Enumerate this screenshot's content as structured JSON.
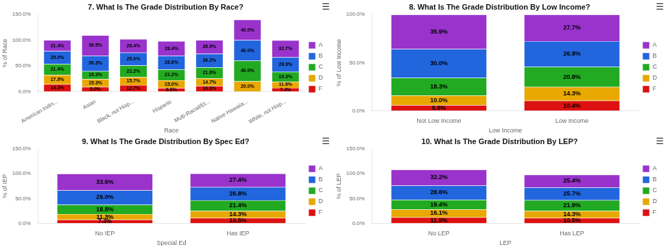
{
  "chart_data": [
    {
      "type": "bar",
      "stacked": true,
      "title": "7. What Is The Grade Distribution By Race?",
      "xlabel": "Race",
      "ylabel": "% of Race",
      "categories": [
        "American Indin...",
        "Asian",
        "Black, not Hisp...",
        "Hispanic",
        "Multi-Racial/Et...",
        "Native Hawaiia...",
        "White, not Hisp..."
      ],
      "series": [
        {
          "name": "F",
          "color": "#dd1111",
          "values": [
            14.3,
            9.0,
            12.7,
            6.8,
            10.8,
            0.0,
            7.4
          ],
          "value_labels": [
            "14.3%",
            "9.0%",
            "12.7%",
            "6.8%",
            "10.8%",
            null,
            "7.4%"
          ]
        },
        {
          "name": "D",
          "color": "#e8a800",
          "values": [
            17.9,
            15.3,
            15.7,
            15.0,
            14.7,
            20.0,
            11.6
          ],
          "value_labels": [
            "17.9%",
            "15.3%",
            "15.7%",
            "15.0%",
            "14.7%",
            "20.0%",
            "11.6%"
          ]
        },
        {
          "name": "C",
          "color": "#22aa22",
          "values": [
            21.4,
            15.3,
            22.2,
            21.2,
            21.6,
            40.0,
            19.3
          ],
          "value_labels": [
            "21.4%",
            "15.3%",
            "22.2%",
            "21.2%",
            "21.6%",
            "40.0%",
            "19.3%"
          ]
        },
        {
          "name": "B",
          "color": "#2266dd",
          "values": [
            25.0,
            30.3,
            25.0,
            26.6,
            26.2,
            40.0,
            28.9
          ],
          "value_labels": [
            "25.0%",
            "30.3%",
            "25.0%",
            "26.6%",
            "26.2%",
            "40.0%",
            "28.9%"
          ]
        },
        {
          "name": "A",
          "color": "#9933cc",
          "values": [
            21.4,
            39.5,
            26.4,
            28.4,
            26.9,
            40.0,
            32.7
          ],
          "value_labels": [
            "21.4%",
            "39.5%",
            "26.4%",
            "28.4%",
            "26.9%",
            "40.0%",
            "32.7%"
          ]
        }
      ],
      "ylim": [
        0,
        150
      ],
      "yticks": [
        {
          "value": 0,
          "label": "0.0%"
        },
        {
          "value": 50,
          "label": "50.0%"
        },
        {
          "value": 100,
          "label": "100.0%"
        },
        {
          "value": 150,
          "label": "150.0%"
        }
      ],
      "grid": false,
      "legend": "right",
      "data_labels": true,
      "annotations": [
        "☰"
      ]
    },
    {
      "type": "bar",
      "stacked": true,
      "title": "8. What Is The Grade Distribution By Low Income?",
      "xlabel": "Low Income",
      "ylabel": "% of Low Income",
      "categories": [
        "Not Low Income",
        "Low Income"
      ],
      "series": [
        {
          "name": "F",
          "color": "#dd1111",
          "values": [
            5.8,
            10.4
          ],
          "value_labels": [
            "5.8%",
            "10.4%"
          ]
        },
        {
          "name": "D",
          "color": "#e8a800",
          "values": [
            10.0,
            14.3
          ],
          "value_labels": [
            "10.0%",
            "14.3%"
          ]
        },
        {
          "name": "C",
          "color": "#22aa22",
          "values": [
            18.3,
            20.8
          ],
          "value_labels": [
            "18.3%",
            "20.8%"
          ]
        },
        {
          "name": "B",
          "color": "#2266dd",
          "values": [
            30.0,
            26.8
          ],
          "value_labels": [
            "30.0%",
            "26.8%"
          ]
        },
        {
          "name": "A",
          "color": "#9933cc",
          "values": [
            35.9,
            27.7
          ],
          "value_labels": [
            "35.9%",
            "27.7%"
          ]
        }
      ],
      "ylim": [
        0,
        100
      ],
      "yticks": [
        {
          "value": 0,
          "label": "0.0%"
        },
        {
          "value": 50,
          "label": "50.0%"
        },
        {
          "value": 100,
          "label": "100.0%"
        }
      ],
      "grid": false,
      "legend": "right",
      "data_labels": true,
      "annotations": [
        "☰"
      ]
    },
    {
      "type": "bar",
      "stacked": true,
      "title": "9. What Is The Grade Distribution By Spec Ed?",
      "xlabel": "Special Ed",
      "ylabel": "% of IEP",
      "categories": [
        "No IEP",
        "Has IEP"
      ],
      "series": [
        {
          "name": "F",
          "color": "#dd1111",
          "values": [
            7.3,
            10.5
          ],
          "value_labels": [
            "7.3%",
            "10.5%"
          ]
        },
        {
          "name": "D",
          "color": "#e8a800",
          "values": [
            11.3,
            14.3
          ],
          "value_labels": [
            "11.3%",
            "14.3%"
          ]
        },
        {
          "name": "C",
          "color": "#22aa22",
          "values": [
            18.8,
            21.4
          ],
          "value_labels": [
            "18.8%",
            "21.4%"
          ]
        },
        {
          "name": "B",
          "color": "#2266dd",
          "values": [
            29.0,
            26.8
          ],
          "value_labels": [
            "29.0%",
            "26.8%"
          ]
        },
        {
          "name": "A",
          "color": "#9933cc",
          "values": [
            33.6,
            27.4
          ],
          "value_labels": [
            "33.6%",
            "27.4%"
          ]
        }
      ],
      "ylim": [
        0,
        150
      ],
      "yticks": [
        {
          "value": 0,
          "label": "0.0%"
        },
        {
          "value": 50,
          "label": "50.0%"
        },
        {
          "value": 100,
          "label": "100.0%"
        },
        {
          "value": 150,
          "label": "150.0%"
        }
      ],
      "grid": false,
      "legend": "right",
      "data_labels": true,
      "annotations": [
        "☰"
      ]
    },
    {
      "type": "bar",
      "stacked": true,
      "title": "10. What Is The Grade Distribution By LEP?",
      "xlabel": "LEP",
      "ylabel": "% of LEP",
      "categories": [
        "No LEP",
        "Has LEP"
      ],
      "series": [
        {
          "name": "F",
          "color": "#dd1111",
          "values": [
            11.9,
            10.5
          ],
          "value_labels": [
            "11.9%",
            "10.5%"
          ]
        },
        {
          "name": "D",
          "color": "#e8a800",
          "values": [
            16.1,
            14.3
          ],
          "value_labels": [
            "16.1%",
            "14.3%"
          ]
        },
        {
          "name": "C",
          "color": "#22aa22",
          "values": [
            19.4,
            21.9
          ],
          "value_labels": [
            "19.4%",
            "21.9%"
          ]
        },
        {
          "name": "B",
          "color": "#2266dd",
          "values": [
            28.6,
            25.7
          ],
          "value_labels": [
            "28.6%",
            "25.7%"
          ]
        },
        {
          "name": "A",
          "color": "#9933cc",
          "values": [
            32.2,
            25.4
          ],
          "value_labels": [
            "32.2%",
            "25.4%"
          ]
        }
      ],
      "ylim": [
        0,
        150
      ],
      "yticks": [
        {
          "value": 0,
          "label": "0.0%"
        },
        {
          "value": 50,
          "label": "50.0%"
        },
        {
          "value": 100,
          "label": "100.0%"
        },
        {
          "value": 150,
          "label": "150.0%"
        }
      ],
      "grid": false,
      "legend": "right",
      "data_labels": true,
      "annotations": [
        "☰"
      ]
    }
  ]
}
